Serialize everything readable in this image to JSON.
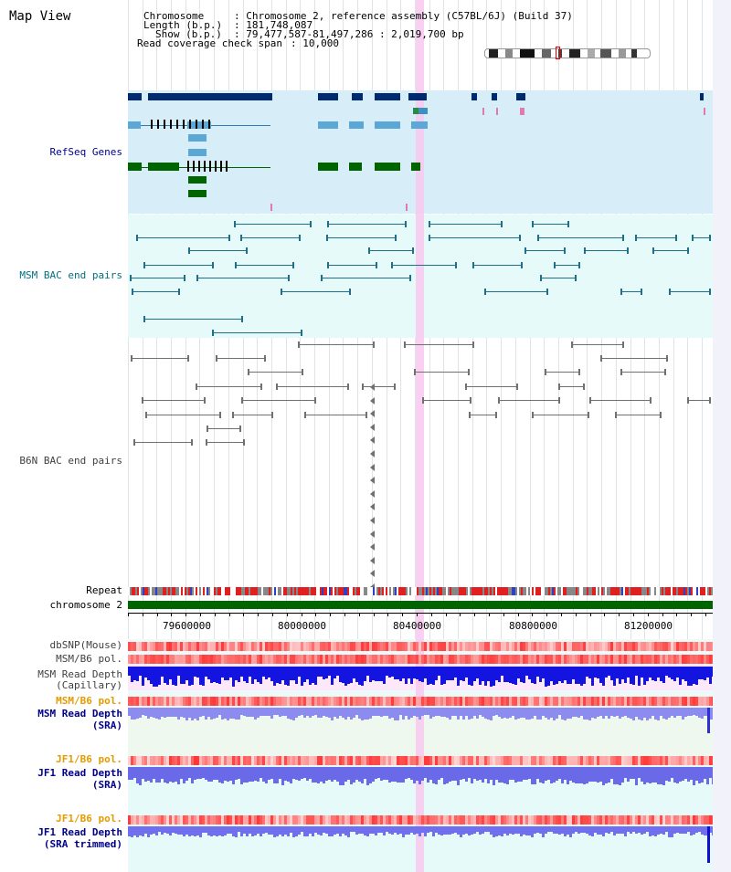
{
  "title": "Map View",
  "header": {
    "chromosome_key": "Chromosome",
    "chromosome_val": ": Chromosome 2, reference assembly (C57BL/6J) (Build 37)",
    "length_key": "Length (b.p.)",
    "length_val": ": 181,748,087",
    "show_key": "Show (b.p.)",
    "show_val": ": 79,477,587-81,497,286 : 2,019,700 bp",
    "coverage_key": "Read coverage check span",
    "coverage_val": ": 10,000"
  },
  "tracks": {
    "refseq": "RefSeq Genes",
    "msm_bac": "MSM BAC end pairs",
    "b6n_bac": "B6N BAC end pairs",
    "repeat": "Repeat",
    "chromosome": "chromosome 2",
    "dbsnp": "dbSNP(Mouse)",
    "msm_b6_pol_1": "MSM/B6 pol.",
    "msm_depth_cap_1": "MSM Read Depth",
    "msm_depth_cap_2": "(Capillary)",
    "msm_b6_pol_2": "MSM/B6 pol.",
    "msm_depth_sra_1": "MSM Read Depth",
    "msm_depth_sra_2": "(SRA)",
    "jf1_pol_1": "JF1/B6 pol.",
    "jf1_depth_sra_1": "JF1 Read Depth",
    "jf1_depth_sra_2": "(SRA)",
    "jf1_pol_2": "JF1/B6 pol.",
    "jf1_depth_trim_1": "JF1 Read Depth",
    "jf1_depth_trim_2": "(SRA trimmed)"
  },
  "axis": {
    "ticks": [
      "79600000",
      "80000000",
      "80400000",
      "80800000",
      "81200000"
    ]
  },
  "colors": {
    "label_blue": "#00008b",
    "label_teal": "#00707f",
    "label_gray": "#404040",
    "label_orange": "#e69a00",
    "refseq_bg": "#d7eef8",
    "msm_bg": "#e6fafa",
    "b6n_bg": "#ffffff",
    "highlight": "#f8c8ee",
    "chromosome_green": "#006400"
  }
}
